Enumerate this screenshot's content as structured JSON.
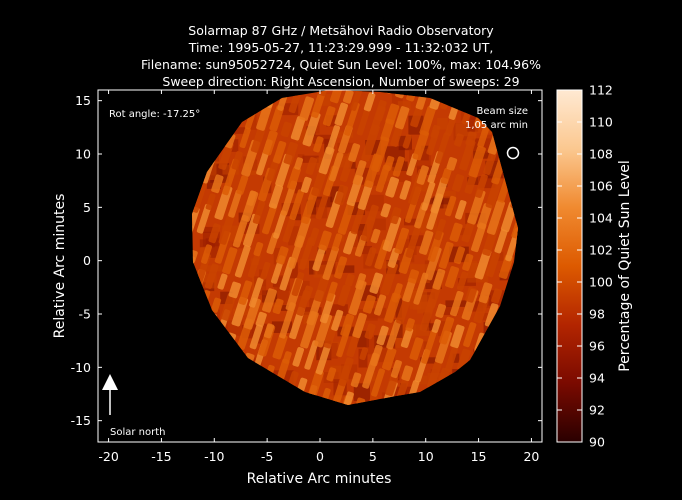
{
  "title": {
    "lines": [
      "Solarmap 87 GHz / Metsähovi Radio Observatory",
      "Time: 1995-05-27, 11:23:29.999 - 11:32:032 UT,",
      "Filename: sun95052724, Quiet Sun Level: 100%, max: 104.96%",
      "Sweep direction: Right Ascension, Number of sweeps: 29"
    ]
  },
  "axes": {
    "xlabel": "Relative Arc minutes",
    "ylabel": "Relative Arc minutes",
    "xlim": [
      -21,
      21
    ],
    "ylim": [
      -17,
      16
    ],
    "xticks": [
      -20,
      -15,
      -10,
      -5,
      0,
      5,
      10,
      15,
      20
    ],
    "yticks": [
      -15,
      -10,
      -5,
      0,
      5,
      10,
      15
    ]
  },
  "annotations": {
    "rot_angle": "Rot angle: -17.25°",
    "beam_size_line1": "Beam size",
    "beam_size_line2": "1,05 arc min",
    "solar_north": "Solar north"
  },
  "colorbar": {
    "label": "Percentage of Quiet Sun Level",
    "min": 90,
    "max": 112,
    "ticks": [
      90,
      92,
      94,
      96,
      98,
      100,
      102,
      104,
      106,
      108,
      110,
      112
    ],
    "colors": [
      "#2a0000",
      "#7a0a00",
      "#b32500",
      "#dd5a00",
      "#f08a30",
      "#fbc890",
      "#ffe9d2"
    ]
  }
}
